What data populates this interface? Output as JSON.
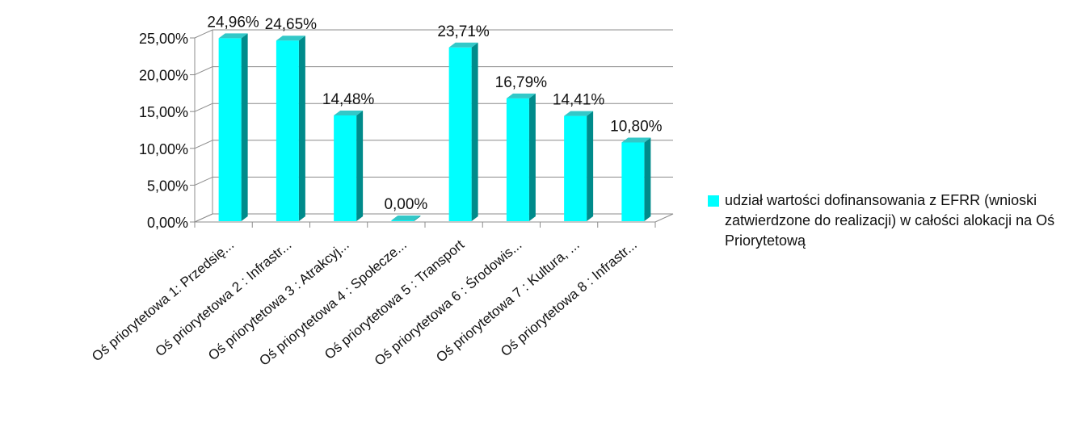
{
  "chart_data": {
    "type": "bar",
    "title": "",
    "xlabel": "",
    "ylabel": "",
    "ylim": [
      0,
      25
    ],
    "y_ticks": [
      "0,00%",
      "5,00%",
      "10,00%",
      "15,00%",
      "20,00%",
      "25,00%"
    ],
    "grid": true,
    "three_d": true,
    "legend_position": "right",
    "categories": [
      "Oś priorytetowa 1: Przedsię...",
      "Oś priorytetowa 2 : Infrastr...",
      "Oś priorytetowa 3 : Atrakcyj...",
      "Oś priorytetowa 4 : Społecze...",
      "Oś priorytetowa 5 : Transport",
      "Oś priorytetowa 6 : Środowis...",
      "Oś priorytetowa 7 : Kultura, ...",
      "Oś priorytetowa 8 : Infrastr..."
    ],
    "series": [
      {
        "name": "udział wartości dofinansowania z EFRR (wnioski zatwierdzone do realizacji) w całości alokacji na Oś Priorytetową",
        "values": [
          24.96,
          24.65,
          14.48,
          0.0,
          23.71,
          16.79,
          14.41,
          10.8
        ],
        "labels": [
          "24,96%",
          "24,65%",
          "14,48%",
          "0,00%",
          "23,71%",
          "16,79%",
          "14,41%",
          "10,80%"
        ]
      }
    ],
    "colors": {
      "front": "#00FFFF",
      "top": "#33C8C8",
      "side": "#008B8B",
      "grid": "#8C8C8C"
    }
  }
}
